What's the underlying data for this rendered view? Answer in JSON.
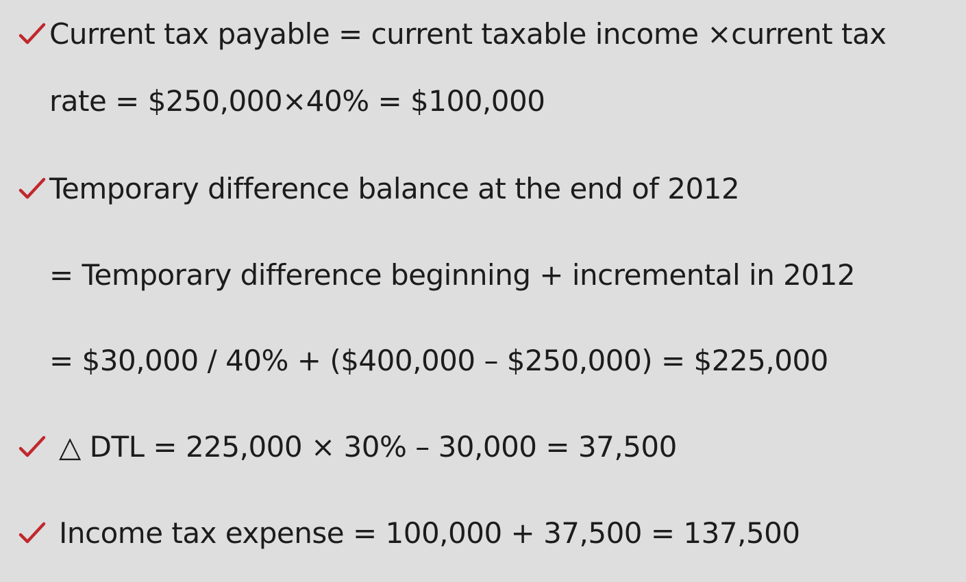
{
  "lines": {
    "l1": "Current tax payable = current taxable income ×current tax",
    "l2": "rate = $250,000×40% = $100,000",
    "l3": "Temporary difference balance at the end of 2012",
    "l4": "= Temporary difference beginning + incremental in 2012",
    "l5": "= $30,000 / 40% + ($400,000 – $250,000) = $225,000",
    "l6": "△ DTL = 225,000 × 30% – 30,000 = 37,500",
    "l7": "Income tax expense = 100,000 + 37,500 = 137,500"
  },
  "icons": {
    "bullet": "check-icon"
  },
  "colors": {
    "background": "#dedede",
    "text": "#1c1c1c",
    "check": "#c0282d"
  }
}
